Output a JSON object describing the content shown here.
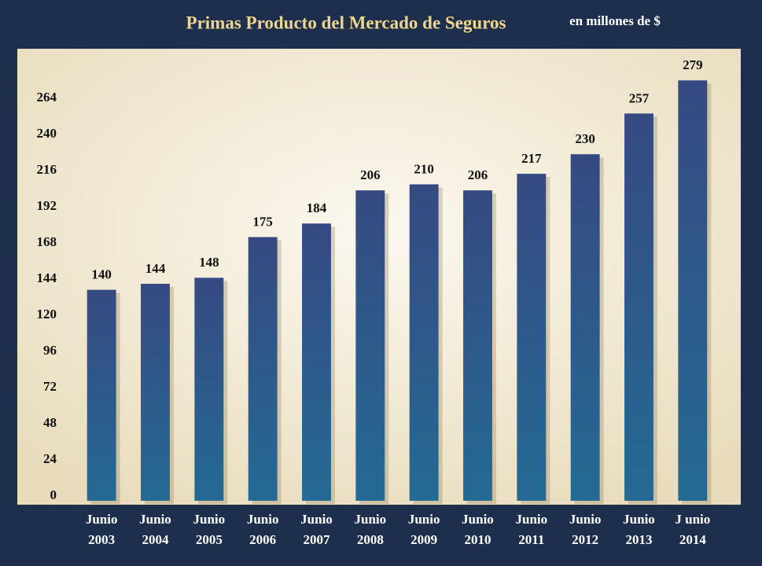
{
  "chart_data": {
    "type": "bar",
    "title": "Primas Producto del Mercado de Seguros",
    "subtitle": "en millones de $",
    "categories": [
      [
        "Junio",
        "2003"
      ],
      [
        "Junio",
        "2004"
      ],
      [
        "Junio",
        "2005"
      ],
      [
        "Junio",
        "2006"
      ],
      [
        "Junio",
        "2007"
      ],
      [
        "Junio",
        "2008"
      ],
      [
        "Junio",
        "2009"
      ],
      [
        "Junio",
        "2010"
      ],
      [
        "Junio",
        "2011"
      ],
      [
        "Junio",
        "2012"
      ],
      [
        "Junio",
        "2013"
      ],
      [
        "J unio",
        "2014"
      ]
    ],
    "values": [
      140,
      144,
      148,
      175,
      184,
      206,
      210,
      206,
      217,
      230,
      257,
      279
    ],
    "color": "#2e5588",
    "ylim": [
      0,
      300
    ],
    "yticks": [
      0,
      24,
      48,
      72,
      96,
      120,
      144,
      168,
      192,
      216,
      240,
      264
    ],
    "grid": false
  }
}
